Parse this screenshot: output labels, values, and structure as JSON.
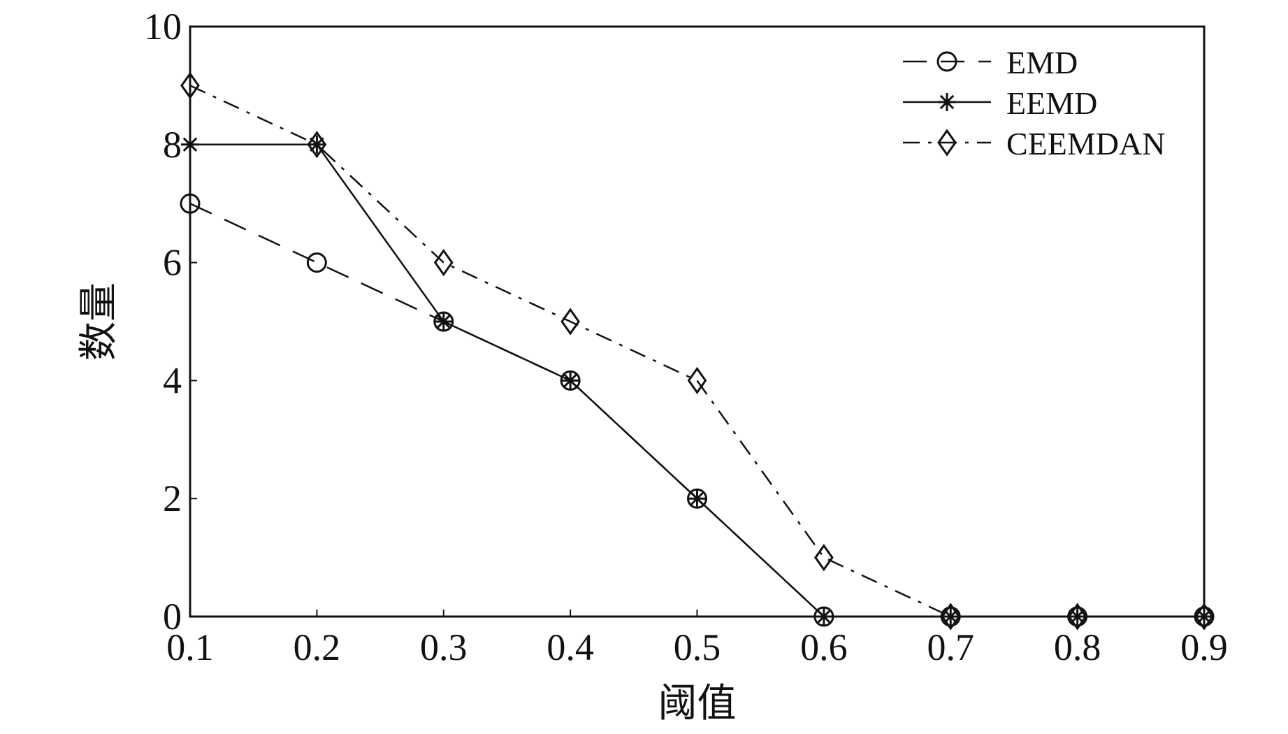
{
  "chart_data": {
    "type": "line",
    "title": "",
    "xlabel": "阈值",
    "ylabel": "数量",
    "x": [
      0.1,
      0.2,
      0.3,
      0.4,
      0.5,
      0.6,
      0.7,
      0.8,
      0.9
    ],
    "xlim": [
      0.1,
      0.9
    ],
    "ylim": [
      0,
      10
    ],
    "xticks": [
      "0.1",
      "0.2",
      "0.3",
      "0.4",
      "0.5",
      "0.6",
      "0.7",
      "0.8",
      "0.9"
    ],
    "yticks": [
      "0",
      "2",
      "4",
      "6",
      "8",
      "10"
    ],
    "grid": false,
    "legend_position": "top-right",
    "series": [
      {
        "name": "EMD",
        "values": [
          7,
          6,
          5,
          4,
          2,
          0,
          0,
          0,
          0
        ],
        "marker": "circle",
        "line_style": "dashed",
        "color": "#111111"
      },
      {
        "name": "EEMD",
        "values": [
          8,
          8,
          5,
          4,
          2,
          0,
          0,
          0,
          0
        ],
        "marker": "asterisk",
        "line_style": "solid",
        "color": "#111111"
      },
      {
        "name": "CEEMDAN",
        "values": [
          9,
          8,
          6,
          5,
          4,
          1,
          0,
          0,
          0
        ],
        "marker": "diamond",
        "line_style": "dash-dot",
        "color": "#111111"
      }
    ]
  }
}
